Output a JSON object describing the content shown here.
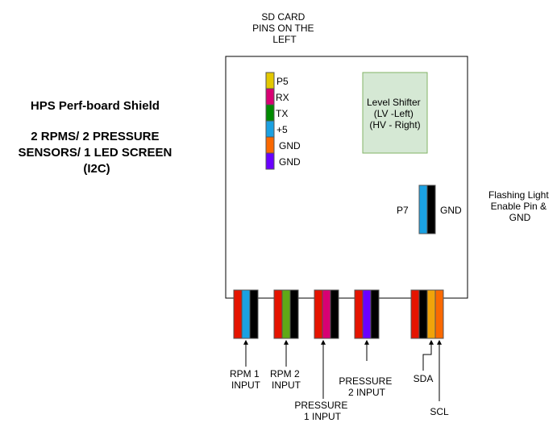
{
  "title_lines": [
    "HPS Perf-board Shield",
    "",
    "2 RPMS/ 2 PRESSURE",
    "SENSORS/ 1 LED SCREEN",
    "(I2C)"
  ],
  "sd_card_lines": [
    "SD CARD",
    "PINS ON THE",
    "LEFT"
  ],
  "sd_pins": [
    {
      "label": "P5",
      "color": "#e3c800"
    },
    {
      "label": "RX",
      "color": "#d80073"
    },
    {
      "label": "TX",
      "color": "#008a00"
    },
    {
      "label": "+5",
      "color": "#1ba1e2"
    },
    {
      "label": "GND",
      "color": "#fa6800"
    },
    {
      "label": "GND",
      "color": "#6a00ff"
    }
  ],
  "level_shifter_lines": [
    "Level Shifter",
    "(LV -Left)",
    "(HV - Right)"
  ],
  "level_shifter_fill": "#d5e8d4",
  "p7": {
    "left_label": "P7",
    "right_label": "GND",
    "colors": [
      "#1ba1e2",
      "#000000"
    ]
  },
  "flashing_light_lines": [
    "Flashing Light",
    "Enable Pin &",
    "GND"
  ],
  "connectors": [
    {
      "colors": [
        "#e51400",
        "#1ba1e2",
        "#000000"
      ],
      "label_lines": [
        "RPM 1",
        "INPUT"
      ]
    },
    {
      "colors": [
        "#e51400",
        "#60a917",
        "#000000"
      ],
      "label_lines": [
        "RPM 2",
        "INPUT"
      ]
    },
    {
      "colors": [
        "#e51400",
        "#d80073",
        "#000000"
      ],
      "label_lines": [
        "PRESSURE",
        "1 INPUT"
      ]
    },
    {
      "colors": [
        "#e51400",
        "#6a00ff",
        "#000000"
      ],
      "label_lines": [
        "PRESSURE",
        "2 INPUT"
      ]
    },
    {
      "colors": [
        "#e51400",
        "#000000",
        "#f0a30a",
        "#fa6800"
      ],
      "label_lines": [
        "SDA"
      ],
      "label2_lines": [
        "SCL"
      ]
    }
  ]
}
